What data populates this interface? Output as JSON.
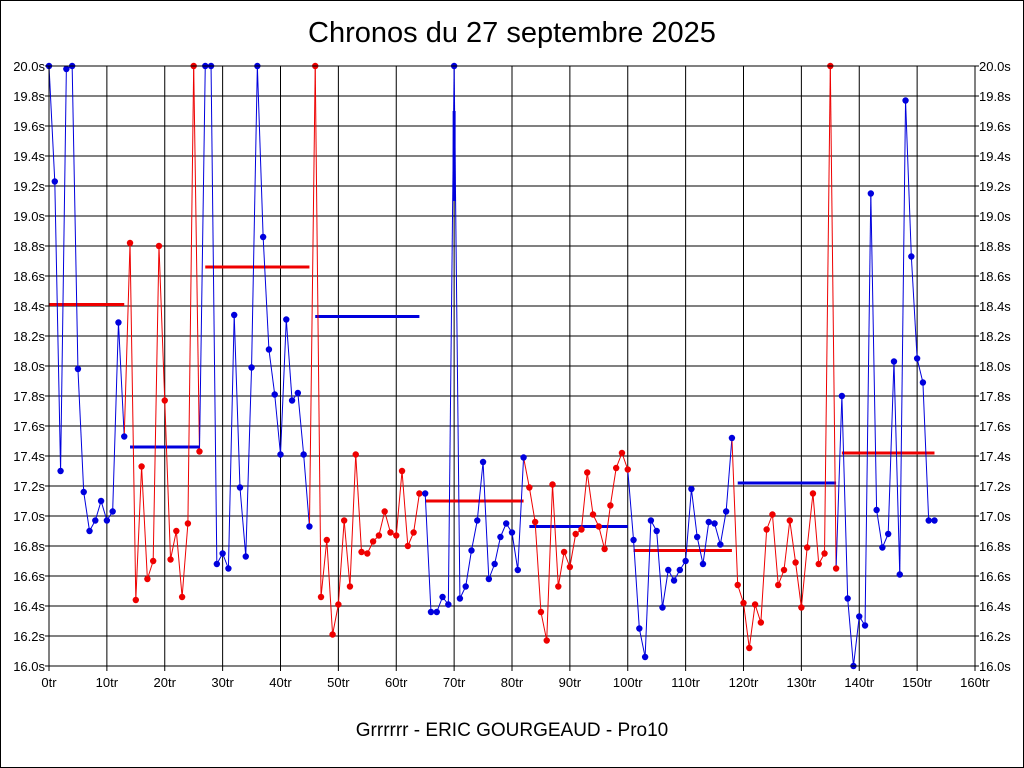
{
  "chart_data": {
    "type": "line",
    "title": "Chronos du 27 septembre 2025",
    "caption": "Grrrrrr - ERIC GOURGEAUD - Pro10",
    "xlim": [
      0,
      160
    ],
    "ylim": [
      16.0,
      20.0
    ],
    "x_ticks": [
      0,
      10,
      20,
      30,
      40,
      50,
      60,
      70,
      80,
      90,
      100,
      110,
      120,
      130,
      140,
      150,
      160
    ],
    "x_tick_labels": [
      "0tr",
      "10tr",
      "20tr",
      "30tr",
      "40tr",
      "50tr",
      "60tr",
      "70tr",
      "80tr",
      "90tr",
      "100tr",
      "110tr",
      "120tr",
      "130tr",
      "140tr",
      "150tr",
      "160tr"
    ],
    "y_ticks": [
      16.0,
      16.2,
      16.4,
      16.6,
      16.8,
      17.0,
      17.2,
      17.4,
      17.6,
      17.8,
      18.0,
      18.2,
      18.4,
      18.6,
      18.8,
      19.0,
      19.2,
      19.4,
      19.6,
      19.8,
      20.0
    ],
    "y_tick_labels": [
      "16.0s",
      "16.2s",
      "16.4s",
      "16.6s",
      "16.8s",
      "17.0s",
      "17.2s",
      "17.4s",
      "17.6s",
      "17.8s",
      "18.0s",
      "18.2s",
      "18.4s",
      "18.6s",
      "18.8s",
      "19.0s",
      "19.2s",
      "19.4s",
      "19.6s",
      "19.8s",
      "20.0s"
    ],
    "y_labels_both_sides": true,
    "grid": true,
    "colors": {
      "blue": "#0000dd",
      "red": "#ee0000"
    },
    "stints": [
      {
        "color": "blue",
        "x": [
          0,
          1,
          2,
          3,
          4,
          5,
          6,
          7,
          8,
          9,
          10,
          11,
          12,
          13
        ],
        "y": [
          20.0,
          19.23,
          17.3,
          19.98,
          20.0,
          17.98,
          17.16,
          16.9,
          16.97,
          17.1,
          16.97,
          17.03,
          18.29,
          17.53
        ],
        "avg": 17.46
      },
      {
        "color": "red",
        "x": [
          14,
          15,
          16,
          17,
          18,
          19,
          20,
          21,
          22,
          23,
          24,
          25,
          26
        ],
        "y": [
          18.82,
          16.44,
          17.33,
          16.58,
          16.7,
          18.8,
          17.77,
          16.71,
          16.9,
          16.46,
          16.95,
          20.0,
          17.43
        ],
        "avg": 18.41
      },
      {
        "color": "blue",
        "x": [
          27,
          28,
          29,
          30,
          31,
          32,
          33,
          34,
          35,
          36,
          37,
          38,
          39,
          40,
          41,
          42,
          43,
          44,
          45
        ],
        "y": [
          20.0,
          20.0,
          16.68,
          16.75,
          16.65,
          18.34,
          17.19,
          16.73,
          17.99,
          20.0,
          18.86,
          18.11,
          17.81,
          17.41,
          18.31,
          17.77,
          17.82,
          17.41,
          16.93
        ],
        "avg": 18.66
      },
      {
        "color": "red",
        "x": [
          46,
          47,
          48,
          49,
          50,
          51,
          52,
          53,
          54,
          55,
          56,
          57,
          58,
          59,
          60,
          61,
          62,
          63,
          64
        ],
        "y": [
          20.0,
          16.46,
          16.84,
          16.21,
          16.41,
          16.97,
          16.53,
          17.41,
          16.76,
          16.75,
          16.83,
          16.87,
          17.03,
          16.89,
          16.87,
          17.3,
          16.8,
          16.89,
          17.15
        ],
        "avg": 17.1
      },
      {
        "color": "blue",
        "x": [
          65,
          66,
          67,
          68,
          69,
          70,
          71,
          72,
          73,
          74,
          75,
          76,
          77,
          78,
          79,
          80,
          81,
          82
        ],
        "y": [
          17.15,
          16.36,
          16.36,
          16.46,
          16.41,
          20.0,
          16.45,
          16.53,
          16.77,
          16.97,
          17.36,
          16.58,
          16.68,
          16.86,
          16.95,
          16.89,
          16.64,
          17.39
        ],
        "avg": 18.33
      },
      {
        "color": "red",
        "x": [
          83,
          84,
          85,
          86,
          87,
          88,
          89,
          90,
          91,
          92,
          93,
          94,
          95,
          96,
          97,
          98,
          99,
          100
        ],
        "y": [
          17.19,
          16.96,
          16.36,
          16.17,
          17.21,
          16.53,
          16.76,
          16.66,
          16.88,
          16.91,
          17.29,
          17.01,
          16.93,
          16.78,
          17.07,
          17.32,
          17.42,
          17.31
        ],
        "avg": 16.77
      },
      {
        "color": "blue",
        "x": [
          101,
          102,
          103,
          104,
          105,
          106,
          107,
          108,
          109,
          110,
          111,
          112,
          113,
          114,
          115,
          116,
          117,
          118
        ],
        "y": [
          16.84,
          16.25,
          16.06,
          16.97,
          16.9,
          16.39,
          16.64,
          16.57,
          16.64,
          16.7,
          17.18,
          16.86,
          16.68,
          16.96,
          16.95,
          16.81,
          17.03,
          17.52
        ],
        "avg": 16.93
      },
      {
        "color": "red",
        "x": [
          119,
          120,
          121,
          122,
          123,
          124,
          125,
          126,
          127,
          128,
          129,
          130,
          131,
          132,
          133,
          134,
          135,
          136
        ],
        "y": [
          16.54,
          16.42,
          16.12,
          16.41,
          16.29,
          16.91,
          17.01,
          16.54,
          16.64,
          16.97,
          16.69,
          16.39,
          16.79,
          17.15,
          16.68,
          16.75,
          20.0,
          16.65
        ],
        "avg": 17.42
      },
      {
        "color": "blue",
        "x": [
          137,
          138,
          139,
          140,
          141,
          142,
          143,
          144,
          145,
          146,
          147,
          148,
          149,
          150,
          151,
          152,
          153
        ],
        "y": [
          17.8,
          16.45,
          16.0,
          16.33,
          16.27,
          19.15,
          17.04,
          16.79,
          16.88,
          18.03,
          16.61,
          19.77,
          18.73,
          18.05,
          17.89,
          16.97,
          16.97
        ],
        "avg": 17.22
      }
    ],
    "averages": [
      {
        "color": "red",
        "x": [
          0,
          13
        ],
        "y": 18.41
      },
      {
        "color": "blue",
        "x": [
          14,
          26
        ],
        "y": 17.46
      },
      {
        "color": "red",
        "x": [
          27,
          45
        ],
        "y": 18.66
      },
      {
        "color": "blue",
        "x": [
          46,
          64
        ],
        "y": 18.33
      },
      {
        "color": "red",
        "x": [
          65,
          82
        ],
        "y": 17.1
      },
      {
        "color": "blue",
        "x": [
          83,
          100
        ],
        "y": 16.93
      },
      {
        "color": "red",
        "x": [
          101,
          118
        ],
        "y": 16.77
      },
      {
        "color": "blue",
        "x": [
          119,
          136
        ],
        "y": 17.22
      },
      {
        "color": "red",
        "x": [
          137,
          153
        ],
        "y": 17.42
      }
    ],
    "spike_marker": {
      "color": "blue",
      "x": 70,
      "y": [
        19.1,
        19.7
      ]
    }
  }
}
